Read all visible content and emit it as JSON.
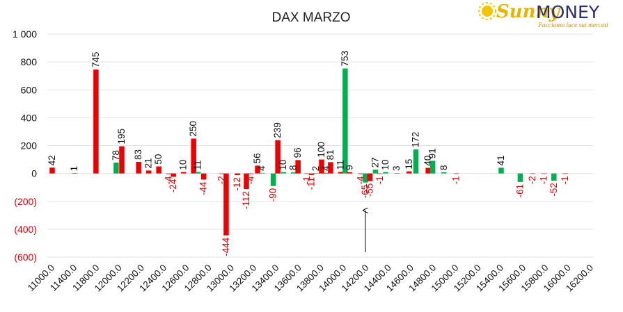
{
  "brand": {
    "logo_script": "Sunny",
    "logo_word": "MONEY",
    "tagline": "Facciamo luce sui mercati",
    "color_script": "#e8b400",
    "color_word": "#2a2f6e",
    "color_tagline": "#d98a00"
  },
  "chart_data": {
    "type": "bar",
    "title": "DAX MARZO",
    "xlabel": "",
    "ylabel": "",
    "ylim": [
      -600,
      1000
    ],
    "yticks": [
      1000,
      800,
      600,
      400,
      200,
      0,
      -200,
      -400,
      -600
    ],
    "ytick_labels": [
      "1 000",
      "800",
      "600",
      "400",
      "200",
      "0",
      "(200)",
      "(400)",
      "(600)"
    ],
    "negative_tick_color": "#dd0000",
    "categories": [
      "11000.0",
      "11400.0",
      "11800.0",
      "12000.0",
      "12200.0",
      "12400.0",
      "12600.0",
      "12800.0",
      "13000.0",
      "13200.0",
      "13400.0",
      "13600.0",
      "13800.0",
      "14000.0",
      "14200.0",
      "14400.0",
      "14600.0",
      "14800.0",
      "15000.0",
      "15200.0",
      "15400.0",
      "15600.0",
      "15800.0",
      "16000.0",
      "16200.0"
    ],
    "series_colors": {
      "green": "#00b050",
      "red": "#ee0000"
    },
    "bars": [
      {
        "x": 0.0,
        "value": 42,
        "color": "red"
      },
      {
        "x": 1.0,
        "value": 1,
        "color": "red"
      },
      {
        "x": 1.95,
        "value": 745,
        "color": "red"
      },
      {
        "x": 2.85,
        "value": 78,
        "color": "green"
      },
      {
        "x": 3.1,
        "value": 195,
        "color": "red"
      },
      {
        "x": 3.85,
        "value": 83,
        "color": "red"
      },
      {
        "x": 4.3,
        "value": 21,
        "color": "red"
      },
      {
        "x": 4.75,
        "value": 50,
        "color": "red"
      },
      {
        "x": 5.2,
        "value": -4,
        "color": "red"
      },
      {
        "x": 5.4,
        "value": -24,
        "color": "red"
      },
      {
        "x": 5.85,
        "value": 10,
        "color": "red"
      },
      {
        "x": 6.3,
        "value": 250,
        "color": "red"
      },
      {
        "x": 6.5,
        "value": 11,
        "color": "green"
      },
      {
        "x": 6.75,
        "value": -44,
        "color": "red"
      },
      {
        "x": 7.55,
        "value": -2,
        "color": "red"
      },
      {
        "x": 7.75,
        "value": -444,
        "color": "red"
      },
      {
        "x": 8.25,
        "value": -12,
        "color": "red"
      },
      {
        "x": 8.65,
        "value": -112,
        "color": "red"
      },
      {
        "x": 8.85,
        "value": -4,
        "color": "red"
      },
      {
        "x": 9.15,
        "value": 56,
        "color": "red"
      },
      {
        "x": 9.35,
        "value": 4,
        "color": "green"
      },
      {
        "x": 9.85,
        "value": -90,
        "color": "green"
      },
      {
        "x": 10.05,
        "value": 239,
        "color": "red"
      },
      {
        "x": 10.3,
        "value": 10,
        "color": "green"
      },
      {
        "x": 10.75,
        "value": 8,
        "color": "green"
      },
      {
        "x": 10.95,
        "value": 96,
        "color": "red"
      },
      {
        "x": 11.35,
        "value": -1,
        "color": "red"
      },
      {
        "x": 11.55,
        "value": -11,
        "color": "red"
      },
      {
        "x": 11.75,
        "value": 2,
        "color": "green"
      },
      {
        "x": 12.0,
        "value": 100,
        "color": "red"
      },
      {
        "x": 12.2,
        "value": 4,
        "color": "red"
      },
      {
        "x": 12.4,
        "value": 81,
        "color": "red"
      },
      {
        "x": 12.85,
        "value": 11,
        "color": "red"
      },
      {
        "x": 13.05,
        "value": 753,
        "color": "green"
      },
      {
        "x": 13.25,
        "value": 9,
        "color": "red"
      },
      {
        "x": 13.75,
        "value": -4,
        "color": "red"
      },
      {
        "x": 13.95,
        "value": -65,
        "color": "green"
      },
      {
        "x": 14.15,
        "value": -55,
        "color": "red"
      },
      {
        "x": 14.4,
        "value": 27,
        "color": "green"
      },
      {
        "x": 14.6,
        "value": -1,
        "color": "red"
      },
      {
        "x": 14.85,
        "value": 10,
        "color": "green"
      },
      {
        "x": 15.35,
        "value": 3,
        "color": "green"
      },
      {
        "x": 15.9,
        "value": 15,
        "color": "red"
      },
      {
        "x": 16.2,
        "value": 172,
        "color": "green"
      },
      {
        "x": 16.75,
        "value": 40,
        "color": "red"
      },
      {
        "x": 16.95,
        "value": 91,
        "color": "green"
      },
      {
        "x": 17.45,
        "value": 8,
        "color": "green"
      },
      {
        "x": 18.0,
        "value": -1,
        "color": "red"
      },
      {
        "x": 20.0,
        "value": 41,
        "color": "green"
      },
      {
        "x": 20.85,
        "value": -61,
        "color": "green"
      },
      {
        "x": 21.4,
        "value": -2,
        "color": "red"
      },
      {
        "x": 21.9,
        "value": -1,
        "color": "red"
      },
      {
        "x": 22.35,
        "value": -52,
        "color": "green"
      },
      {
        "x": 22.85,
        "value": -1,
        "color": "red"
      }
    ],
    "annotations": [
      {
        "type": "arrow",
        "x": 13.95,
        "from_value": -565,
        "to_value": -265
      }
    ],
    "grid": true,
    "legend": "none"
  }
}
